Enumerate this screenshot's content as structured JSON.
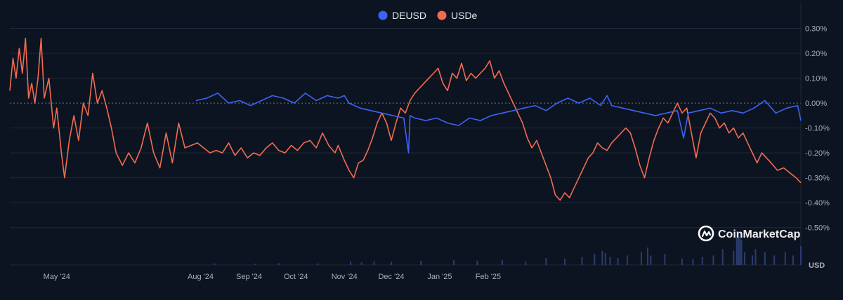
{
  "chart_data": {
    "type": "line",
    "x_ticks": [
      "May '24",
      "Aug '24",
      "Sep '24",
      "Oct '24",
      "Nov '24",
      "Dec '24",
      "Jan '25",
      "Feb '25"
    ],
    "y_ticks": [
      "0.30%",
      "0.20%",
      "0.10%",
      "0.00%",
      "-0.10%",
      "-0.20%",
      "-0.30%",
      "-0.40%",
      "-0.50%"
    ],
    "ylim": [
      -0.65,
      0.4
    ],
    "volume_unit_label": "USD",
    "grid": true,
    "legend_position": "top-center",
    "series": [
      {
        "name": "DEUSD",
        "color": "#3d63f5",
        "points": [
          [
            "2024-07-29",
            0.01
          ],
          [
            "2024-08-05",
            0.02
          ],
          [
            "2024-08-12",
            0.04
          ],
          [
            "2024-08-19",
            0.0
          ],
          [
            "2024-08-26",
            0.01
          ],
          [
            "2024-09-02",
            -0.01
          ],
          [
            "2024-09-09",
            0.01
          ],
          [
            "2024-09-16",
            0.03
          ],
          [
            "2024-09-23",
            0.02
          ],
          [
            "2024-09-30",
            0.0
          ],
          [
            "2024-10-07",
            0.04
          ],
          [
            "2024-10-14",
            0.01
          ],
          [
            "2024-10-21",
            0.03
          ],
          [
            "2024-10-28",
            0.02
          ],
          [
            "2024-11-01",
            0.03
          ],
          [
            "2024-11-04",
            0.0
          ],
          [
            "2024-11-11",
            -0.02
          ],
          [
            "2024-11-18",
            -0.03
          ],
          [
            "2024-11-25",
            -0.04
          ],
          [
            "2024-12-02",
            -0.05
          ],
          [
            "2024-12-09",
            -0.06
          ],
          [
            "2024-12-12",
            -0.2
          ],
          [
            "2024-12-13",
            -0.05
          ],
          [
            "2024-12-16",
            -0.06
          ],
          [
            "2024-12-23",
            -0.07
          ],
          [
            "2024-12-30",
            -0.06
          ],
          [
            "2025-01-06",
            -0.08
          ],
          [
            "2025-01-13",
            -0.09
          ],
          [
            "2025-01-20",
            -0.06
          ],
          [
            "2025-01-27",
            -0.07
          ],
          [
            "2025-02-03",
            -0.05
          ],
          [
            "2025-02-10",
            -0.04
          ],
          [
            "2025-02-17",
            -0.03
          ],
          [
            "2025-02-24",
            -0.02
          ],
          [
            "2025-03-03",
            -0.01
          ],
          [
            "2025-03-10",
            -0.03
          ],
          [
            "2025-03-17",
            0.0
          ],
          [
            "2025-03-24",
            0.02
          ],
          [
            "2025-03-31",
            0.0
          ],
          [
            "2025-04-07",
            0.02
          ],
          [
            "2025-04-14",
            -0.01
          ],
          [
            "2025-04-18",
            0.03
          ],
          [
            "2025-04-21",
            -0.01
          ],
          [
            "2025-04-28",
            -0.02
          ],
          [
            "2025-05-05",
            -0.03
          ],
          [
            "2025-05-12",
            -0.04
          ],
          [
            "2025-05-19",
            -0.05
          ],
          [
            "2025-05-26",
            -0.04
          ],
          [
            "2025-06-02",
            -0.03
          ],
          [
            "2025-06-06",
            -0.14
          ],
          [
            "2025-06-09",
            -0.04
          ],
          [
            "2025-06-16",
            -0.03
          ],
          [
            "2025-06-23",
            -0.02
          ],
          [
            "2025-06-30",
            -0.04
          ],
          [
            "2025-07-07",
            -0.03
          ],
          [
            "2025-07-14",
            -0.04
          ],
          [
            "2025-07-21",
            -0.02
          ],
          [
            "2025-07-28",
            0.01
          ],
          [
            "2025-08-04",
            -0.04
          ],
          [
            "2025-08-11",
            -0.02
          ],
          [
            "2025-08-18",
            -0.01
          ],
          [
            "2025-08-20",
            -0.07
          ]
        ]
      },
      {
        "name": "USDe",
        "color": "#f26b4f",
        "points": [
          [
            "2024-04-01",
            0.05
          ],
          [
            "2024-04-03",
            0.18
          ],
          [
            "2024-04-05",
            0.1
          ],
          [
            "2024-04-07",
            0.22
          ],
          [
            "2024-04-09",
            0.12
          ],
          [
            "2024-04-11",
            0.26
          ],
          [
            "2024-04-13",
            0.02
          ],
          [
            "2024-04-15",
            0.08
          ],
          [
            "2024-04-17",
            0.0
          ],
          [
            "2024-04-19",
            0.1
          ],
          [
            "2024-04-21",
            0.26
          ],
          [
            "2024-04-23",
            0.02
          ],
          [
            "2024-04-26",
            0.1
          ],
          [
            "2024-04-29",
            -0.1
          ],
          [
            "2024-05-01",
            -0.02
          ],
          [
            "2024-05-04",
            -0.2
          ],
          [
            "2024-05-06",
            -0.3
          ],
          [
            "2024-05-09",
            -0.15
          ],
          [
            "2024-05-12",
            -0.05
          ],
          [
            "2024-05-15",
            -0.15
          ],
          [
            "2024-05-18",
            0.0
          ],
          [
            "2024-05-21",
            -0.05
          ],
          [
            "2024-05-24",
            0.12
          ],
          [
            "2024-05-27",
            0.0
          ],
          [
            "2024-05-30",
            0.05
          ],
          [
            "2024-06-02",
            -0.02
          ],
          [
            "2024-06-05",
            -0.1
          ],
          [
            "2024-06-08",
            -0.2
          ],
          [
            "2024-06-12",
            -0.25
          ],
          [
            "2024-06-16",
            -0.2
          ],
          [
            "2024-06-20",
            -0.24
          ],
          [
            "2024-06-24",
            -0.18
          ],
          [
            "2024-06-28",
            -0.08
          ],
          [
            "2024-07-02",
            -0.2
          ],
          [
            "2024-07-06",
            -0.26
          ],
          [
            "2024-07-10",
            -0.12
          ],
          [
            "2024-07-14",
            -0.24
          ],
          [
            "2024-07-18",
            -0.08
          ],
          [
            "2024-07-22",
            -0.18
          ],
          [
            "2024-07-26",
            -0.17
          ],
          [
            "2024-07-30",
            -0.16
          ],
          [
            "2024-08-03",
            -0.18
          ],
          [
            "2024-08-07",
            -0.2
          ],
          [
            "2024-08-11",
            -0.19
          ],
          [
            "2024-08-15",
            -0.2
          ],
          [
            "2024-08-19",
            -0.16
          ],
          [
            "2024-08-23",
            -0.21
          ],
          [
            "2024-08-27",
            -0.18
          ],
          [
            "2024-08-31",
            -0.22
          ],
          [
            "2024-09-04",
            -0.2
          ],
          [
            "2024-09-08",
            -0.21
          ],
          [
            "2024-09-12",
            -0.18
          ],
          [
            "2024-09-16",
            -0.16
          ],
          [
            "2024-09-20",
            -0.19
          ],
          [
            "2024-09-24",
            -0.2
          ],
          [
            "2024-09-28",
            -0.17
          ],
          [
            "2024-10-02",
            -0.19
          ],
          [
            "2024-10-06",
            -0.16
          ],
          [
            "2024-10-10",
            -0.15
          ],
          [
            "2024-10-14",
            -0.18
          ],
          [
            "2024-10-18",
            -0.12
          ],
          [
            "2024-10-22",
            -0.17
          ],
          [
            "2024-10-26",
            -0.2
          ],
          [
            "2024-10-28",
            -0.17
          ],
          [
            "2024-11-01",
            -0.23
          ],
          [
            "2024-11-04",
            -0.27
          ],
          [
            "2024-11-07",
            -0.3
          ],
          [
            "2024-11-10",
            -0.24
          ],
          [
            "2024-11-13",
            -0.23
          ],
          [
            "2024-11-16",
            -0.19
          ],
          [
            "2024-11-19",
            -0.14
          ],
          [
            "2024-11-22",
            -0.08
          ],
          [
            "2024-11-25",
            -0.04
          ],
          [
            "2024-11-28",
            -0.08
          ],
          [
            "2024-12-01",
            -0.15
          ],
          [
            "2024-12-04",
            -0.08
          ],
          [
            "2024-12-07",
            -0.02
          ],
          [
            "2024-12-10",
            -0.04
          ],
          [
            "2024-12-13",
            0.01
          ],
          [
            "2024-12-16",
            0.04
          ],
          [
            "2024-12-19",
            0.06
          ],
          [
            "2024-12-22",
            0.08
          ],
          [
            "2024-12-25",
            0.1
          ],
          [
            "2024-12-28",
            0.12
          ],
          [
            "2024-12-31",
            0.14
          ],
          [
            "2025-01-03",
            0.08
          ],
          [
            "2025-01-06",
            0.05
          ],
          [
            "2025-01-09",
            0.12
          ],
          [
            "2025-01-12",
            0.1
          ],
          [
            "2025-01-15",
            0.16
          ],
          [
            "2025-01-18",
            0.09
          ],
          [
            "2025-01-21",
            0.12
          ],
          [
            "2025-01-24",
            0.1
          ],
          [
            "2025-01-27",
            0.12
          ],
          [
            "2025-01-30",
            0.14
          ],
          [
            "2025-02-02",
            0.17
          ],
          [
            "2025-02-05",
            0.1
          ],
          [
            "2025-02-08",
            0.13
          ],
          [
            "2025-02-11",
            0.08
          ],
          [
            "2025-02-14",
            0.04
          ],
          [
            "2025-02-17",
            0.0
          ],
          [
            "2025-02-20",
            -0.04
          ],
          [
            "2025-02-23",
            -0.08
          ],
          [
            "2025-02-26",
            -0.14
          ],
          [
            "2025-03-01",
            -0.18
          ],
          [
            "2025-03-04",
            -0.15
          ],
          [
            "2025-03-07",
            -0.2
          ],
          [
            "2025-03-10",
            -0.25
          ],
          [
            "2025-03-13",
            -0.3
          ],
          [
            "2025-03-16",
            -0.37
          ],
          [
            "2025-03-19",
            -0.39
          ],
          [
            "2025-03-22",
            -0.36
          ],
          [
            "2025-03-25",
            -0.38
          ],
          [
            "2025-03-28",
            -0.34
          ],
          [
            "2025-03-31",
            -0.3
          ],
          [
            "2025-04-03",
            -0.26
          ],
          [
            "2025-04-06",
            -0.22
          ],
          [
            "2025-04-09",
            -0.2
          ],
          [
            "2025-04-12",
            -0.16
          ],
          [
            "2025-04-15",
            -0.18
          ],
          [
            "2025-04-18",
            -0.19
          ],
          [
            "2025-04-21",
            -0.16
          ],
          [
            "2025-04-24",
            -0.14
          ],
          [
            "2025-04-27",
            -0.12
          ],
          [
            "2025-04-30",
            -0.1
          ],
          [
            "2025-05-03",
            -0.12
          ],
          [
            "2025-05-06",
            -0.18
          ],
          [
            "2025-05-09",
            -0.25
          ],
          [
            "2025-05-12",
            -0.3
          ],
          [
            "2025-05-15",
            -0.22
          ],
          [
            "2025-05-18",
            -0.15
          ],
          [
            "2025-05-21",
            -0.1
          ],
          [
            "2025-05-24",
            -0.06
          ],
          [
            "2025-05-27",
            -0.08
          ],
          [
            "2025-05-30",
            -0.04
          ],
          [
            "2025-06-02",
            0.0
          ],
          [
            "2025-06-05",
            -0.04
          ],
          [
            "2025-06-08",
            -0.02
          ],
          [
            "2025-06-11",
            -0.12
          ],
          [
            "2025-06-14",
            -0.22
          ],
          [
            "2025-06-17",
            -0.12
          ],
          [
            "2025-06-20",
            -0.08
          ],
          [
            "2025-06-23",
            -0.04
          ],
          [
            "2025-06-26",
            -0.06
          ],
          [
            "2025-06-29",
            -0.1
          ],
          [
            "2025-07-02",
            -0.08
          ],
          [
            "2025-07-05",
            -0.12
          ],
          [
            "2025-07-08",
            -0.1
          ],
          [
            "2025-07-11",
            -0.14
          ],
          [
            "2025-07-14",
            -0.12
          ],
          [
            "2025-07-17",
            -0.16
          ],
          [
            "2025-07-20",
            -0.2
          ],
          [
            "2025-07-23",
            -0.24
          ],
          [
            "2025-07-26",
            -0.2
          ],
          [
            "2025-07-29",
            -0.22
          ],
          [
            "2025-08-01",
            -0.24
          ],
          [
            "2025-08-05",
            -0.27
          ],
          [
            "2025-08-09",
            -0.26
          ],
          [
            "2025-08-13",
            -0.28
          ],
          [
            "2025-08-17",
            -0.3
          ],
          [
            "2025-08-20",
            -0.32
          ]
        ]
      }
    ],
    "volume": {
      "color": "#2b3d6e",
      "bars": [
        [
          "2024-08-10",
          0.5
        ],
        [
          "2024-09-05",
          0.4
        ],
        [
          "2024-09-20",
          0.6
        ],
        [
          "2024-10-15",
          0.5
        ],
        [
          "2024-11-05",
          1.0
        ],
        [
          "2024-11-12",
          0.8
        ],
        [
          "2024-11-20",
          1.1
        ],
        [
          "2024-12-01",
          1.0
        ],
        [
          "2024-12-20",
          1.3
        ],
        [
          "2025-01-10",
          1.5
        ],
        [
          "2025-01-25",
          1.4
        ],
        [
          "2025-02-10",
          1.6
        ],
        [
          "2025-02-25",
          1.0
        ],
        [
          "2025-03-10",
          2.2
        ],
        [
          "2025-03-22",
          2.0
        ],
        [
          "2025-04-02",
          2.5
        ],
        [
          "2025-04-10",
          3.5
        ],
        [
          "2025-04-15",
          4.5
        ],
        [
          "2025-04-17",
          3.8
        ],
        [
          "2025-04-20",
          2.5
        ],
        [
          "2025-04-25",
          2.2
        ],
        [
          "2025-05-01",
          3.0
        ],
        [
          "2025-05-10",
          4.0
        ],
        [
          "2025-05-14",
          5.5
        ],
        [
          "2025-05-16",
          3.0
        ],
        [
          "2025-05-25",
          3.5
        ],
        [
          "2025-06-05",
          2.0
        ],
        [
          "2025-06-12",
          1.8
        ],
        [
          "2025-06-18",
          2.5
        ],
        [
          "2025-06-25",
          3.0
        ],
        [
          "2025-07-01",
          5.0
        ],
        [
          "2025-07-08",
          4.5
        ],
        [
          "2025-07-10",
          8.5
        ],
        [
          "2025-07-11",
          10.0
        ],
        [
          "2025-07-12",
          9.0
        ],
        [
          "2025-07-13",
          8.0
        ],
        [
          "2025-07-15",
          4.0
        ],
        [
          "2025-07-20",
          3.0
        ],
        [
          "2025-07-22",
          5.0
        ],
        [
          "2025-07-28",
          4.0
        ],
        [
          "2025-08-03",
          3.0
        ],
        [
          "2025-08-10",
          4.0
        ],
        [
          "2025-08-15",
          3.0
        ],
        [
          "2025-08-20",
          6.0
        ]
      ]
    }
  },
  "watermark": {
    "text": "CoinMarketCap",
    "icon": "coinmarketcap-logo-icon"
  },
  "colors": {
    "background": "#0d1421",
    "grid": "#1f2836",
    "zero_line": "#6b7385"
  }
}
